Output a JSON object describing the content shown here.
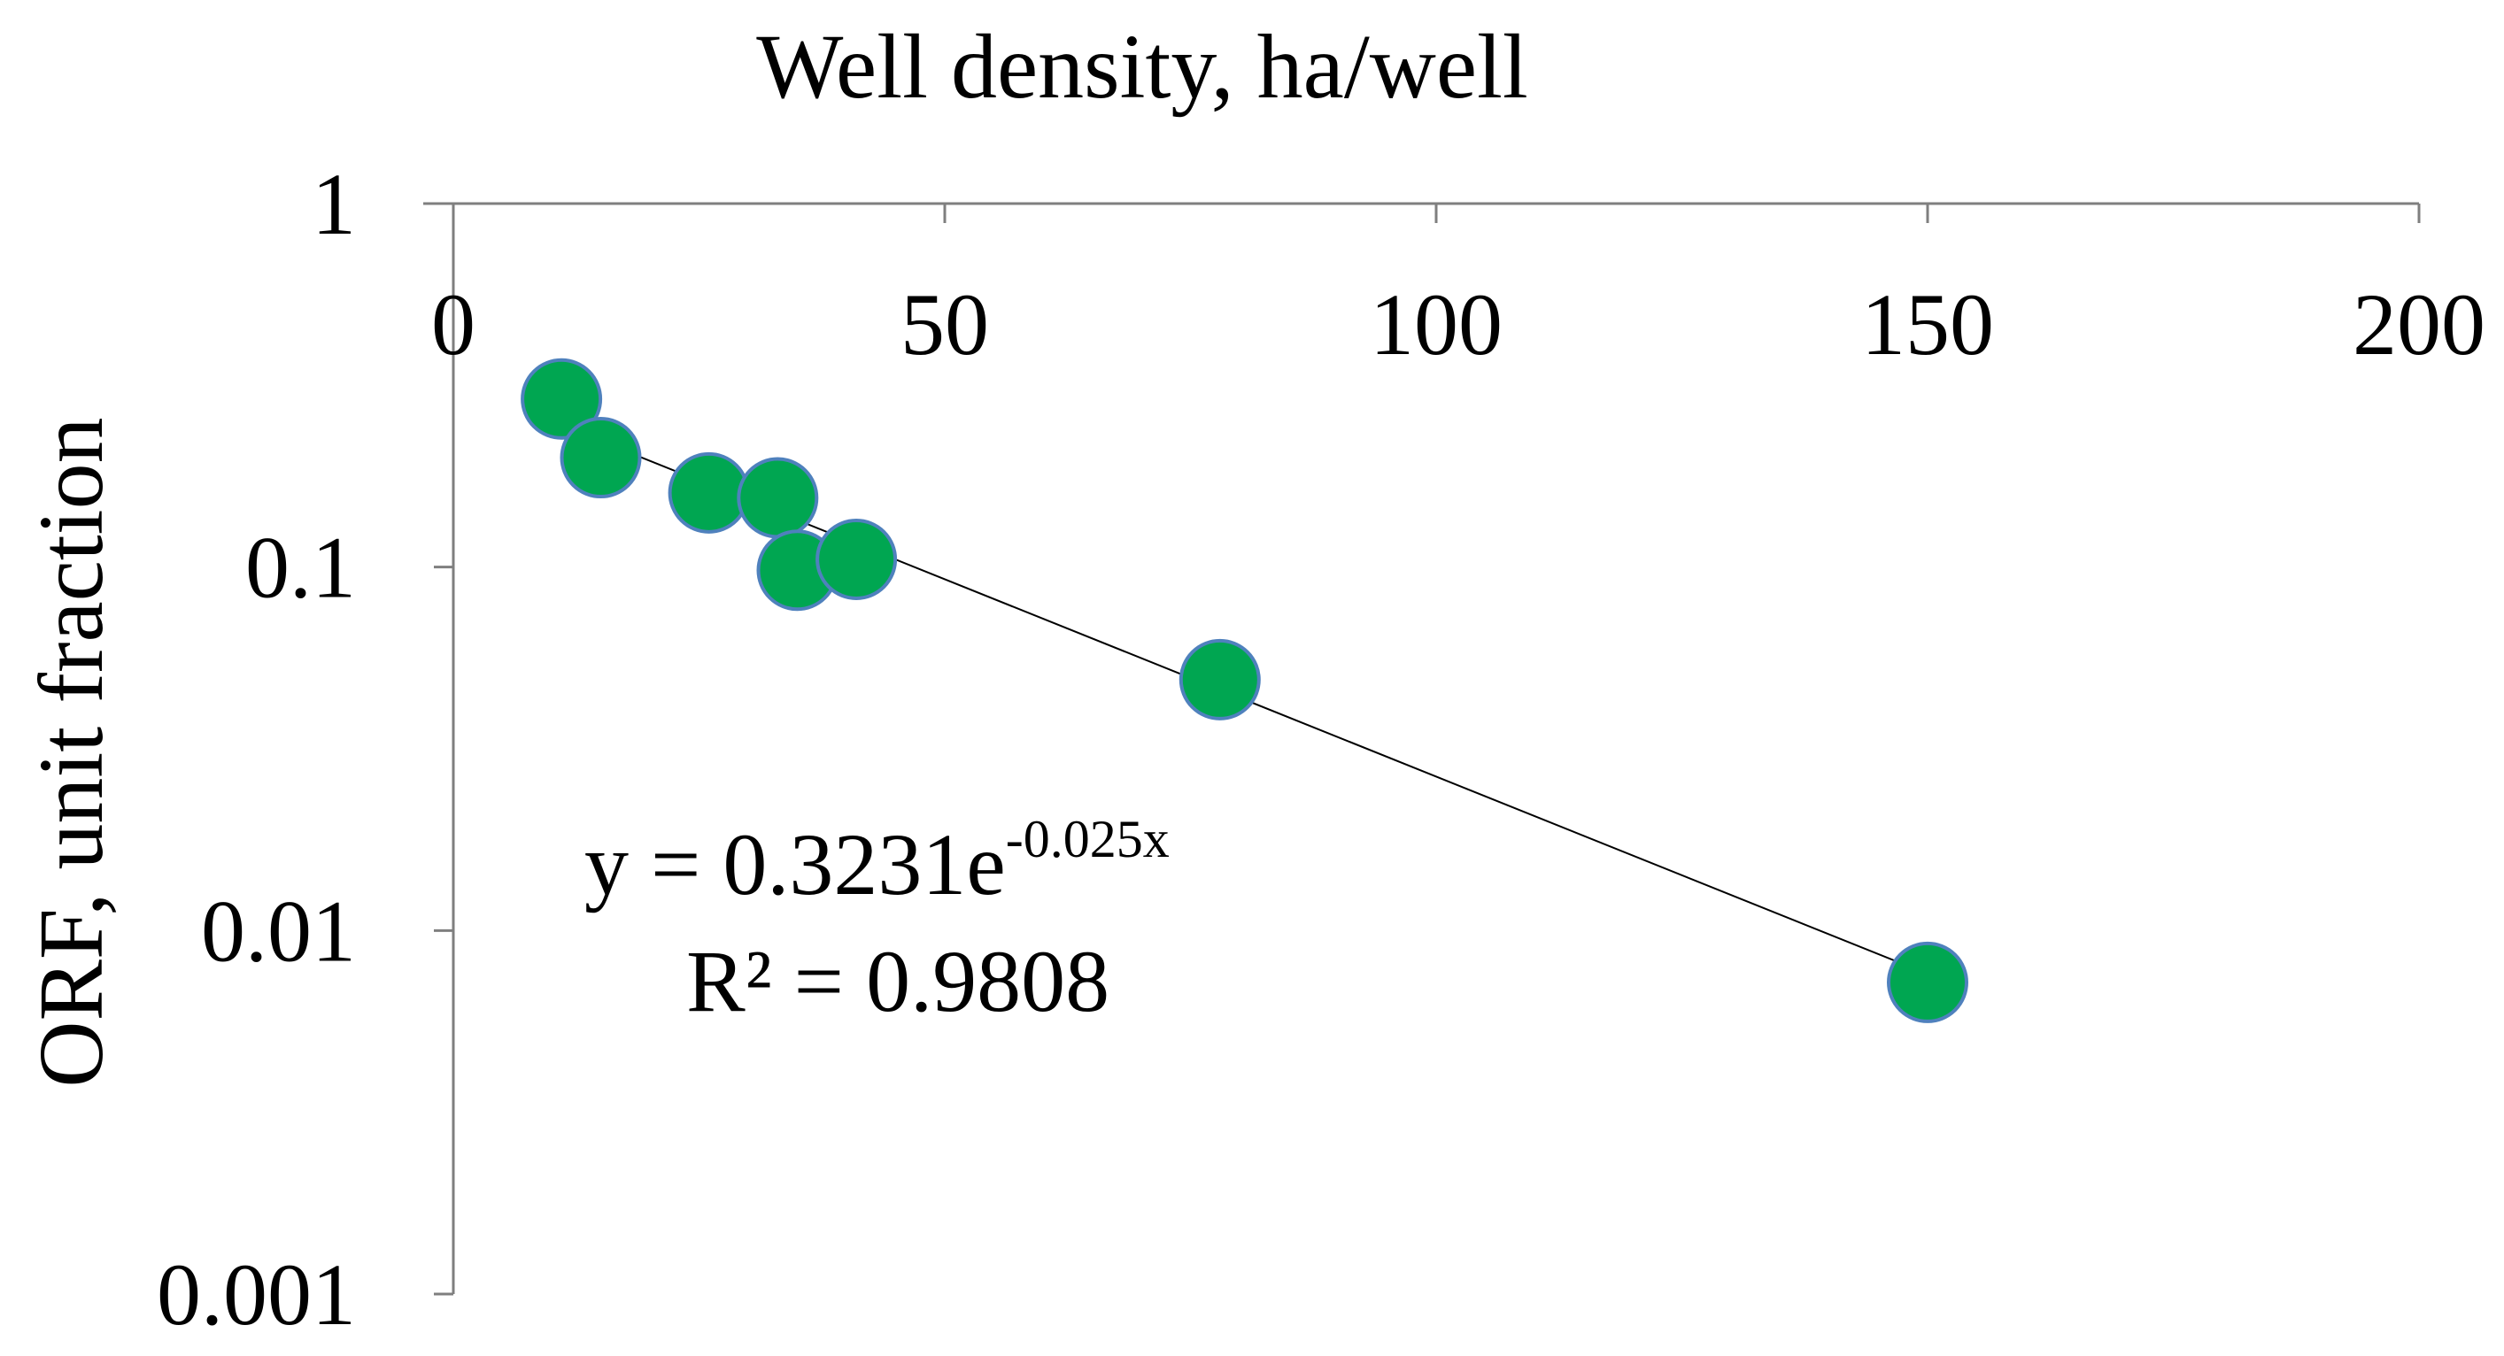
{
  "chart_data": {
    "type": "scatter",
    "title": "Well density, ha/well",
    "xlabel": "",
    "ylabel": "ORF, unit fraction",
    "xlim": [
      0,
      200
    ],
    "ylim": [
      0.001,
      1
    ],
    "yscale": "log",
    "x_axis_position": "top",
    "x_ticks": [
      "0",
      "50",
      "100",
      "150",
      "200"
    ],
    "y_ticks": [
      "1",
      "0.1",
      "0.01",
      "0.001"
    ],
    "grid": false,
    "legend": "none",
    "series": [
      {
        "marker_color": "#00a651",
        "points": [
          {
            "x": 11,
            "y": 0.29
          },
          {
            "x": 15,
            "y": 0.2
          },
          {
            "x": 26,
            "y": 0.16
          },
          {
            "x": 33,
            "y": 0.155
          },
          {
            "x": 35,
            "y": 0.098
          },
          {
            "x": 41,
            "y": 0.105
          },
          {
            "x": 78,
            "y": 0.049
          },
          {
            "x": 150,
            "y": 0.0072
          }
        ]
      }
    ],
    "trendline": {
      "type": "exponential",
      "a": 0.3231,
      "b": -0.025,
      "x_range": [
        11,
        150
      ],
      "equation_base": "y = 0.3231e",
      "equation_exponent": "-0.025x",
      "r_squared_label": "R² = 0.9808",
      "color": "#000000"
    }
  }
}
